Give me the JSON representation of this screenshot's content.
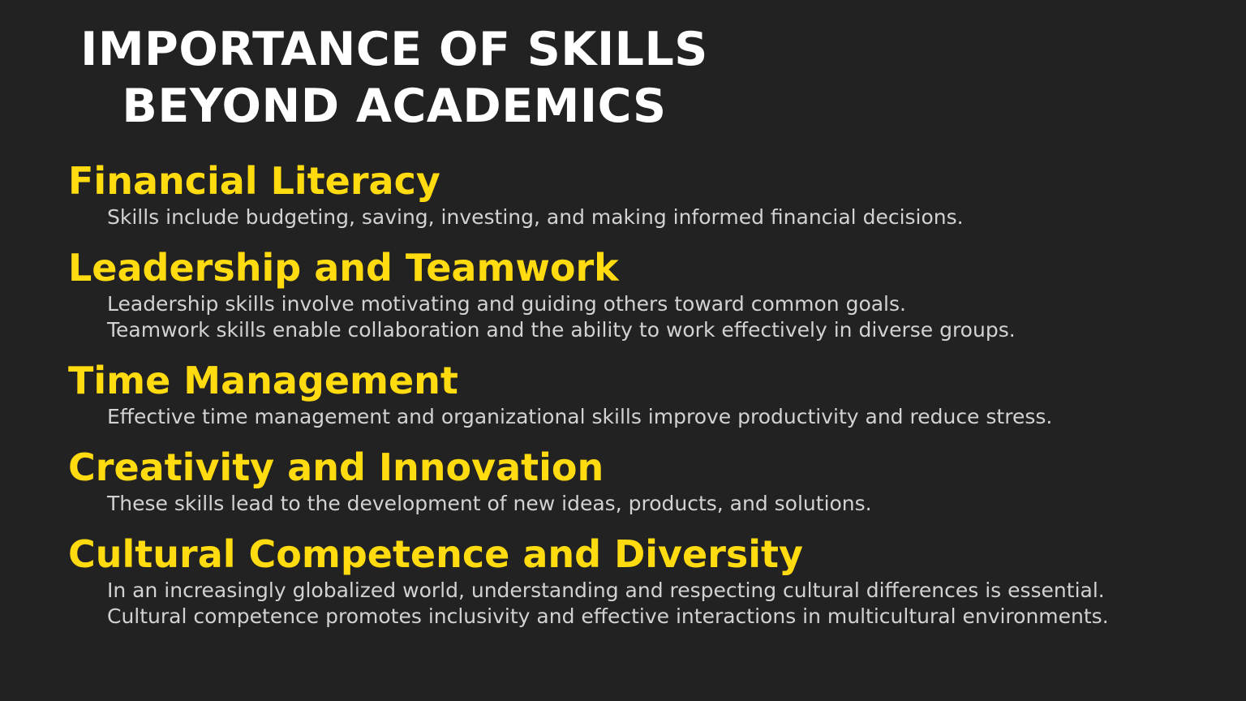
{
  "title": {
    "line1": "IMPORTANCE OF SKILLS",
    "line2": "BEYOND ACADEMICS"
  },
  "colors": {
    "background": "#222222",
    "title": "#ffffff",
    "heading": "#ffdb0f",
    "body_text": "#d2d2d2"
  },
  "sections": [
    {
      "heading": "Financial Literacy",
      "lines": [
        "Skills include budgeting, saving, investing, and making informed financial decisions."
      ]
    },
    {
      "heading": "Leadership and Teamwork",
      "lines": [
        "Leadership skills involve motivating and guiding others toward common goals.",
        "Teamwork skills enable collaboration and the ability to work effectively in diverse groups."
      ]
    },
    {
      "heading": "Time Management",
      "lines": [
        "Effective time management and organizational skills improve productivity and reduce stress."
      ]
    },
    {
      "heading": "Creativity and Innovation",
      "lines": [
        "These skills lead to the development of new ideas, products, and solutions."
      ]
    },
    {
      "heading": "Cultural Competence and Diversity",
      "lines": [
        "In an increasingly globalized world, understanding and respecting cultural differences is essential.",
        "Cultural competence promotes inclusivity and effective interactions in multicultural environments."
      ]
    }
  ]
}
